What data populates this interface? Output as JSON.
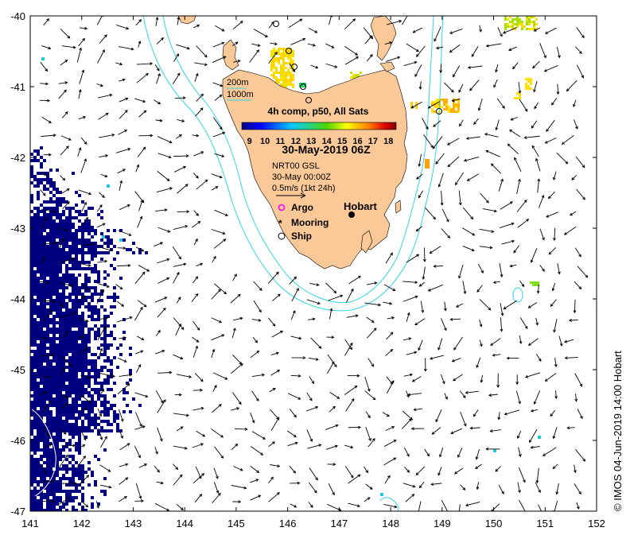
{
  "chart_data": {
    "type": "map",
    "xlim": [
      141,
      152
    ],
    "ylim": [
      -47,
      -40
    ],
    "x_ticks": [
      "141",
      "142",
      "143",
      "144",
      "145",
      "146",
      "147",
      "148",
      "149",
      "150",
      "151",
      "152"
    ],
    "y_ticks": [
      "-40",
      "-41",
      "-42",
      "-43",
      "-44",
      "-45",
      "-46",
      "-47"
    ],
    "colorbar": {
      "title": "4h comp, p50, All Sats",
      "ticks": [
        "9",
        "10",
        "11",
        "12",
        "13",
        "14",
        "15",
        "16",
        "17",
        "18"
      ],
      "range": [
        8.5,
        18.5
      ]
    },
    "date_label": "30-May-2019 06Z",
    "model_label": "NRT00 GSL",
    "model_time": "30-May 00:00Z",
    "scale_label": "0.5m/s (1kt 24h)",
    "depth_labels": [
      "200m",
      "1000m"
    ],
    "legend": [
      {
        "label": "Argo",
        "symbol": "magenta-circle"
      },
      {
        "label": "Mooring",
        "symbol": "asterisk"
      },
      {
        "label": "Ship",
        "symbol": "open-circle"
      }
    ],
    "place_label": "Hobart",
    "place_lon": 147.3,
    "place_lat": -42.88,
    "credit": "© IMOS 04-Jun-2019 14:00 Hobart",
    "colors": {
      "land": "#fbc997",
      "isobath": "#2fd6e6",
      "sst_cold": "#000080",
      "arrow": "#000000"
    }
  }
}
